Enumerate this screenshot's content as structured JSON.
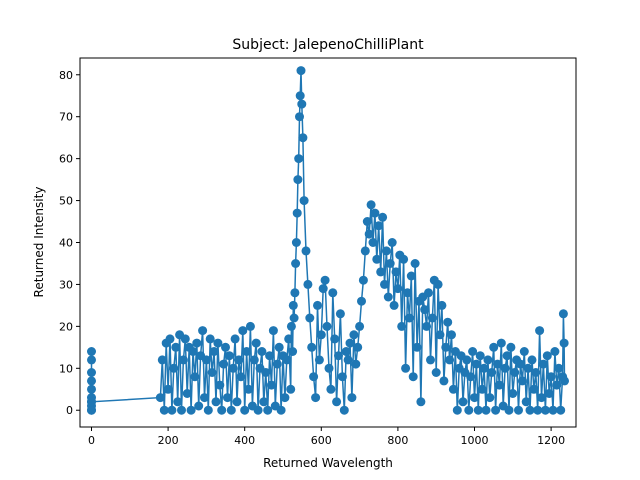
{
  "chart_data": {
    "type": "line",
    "title": "Subject: JalepenoChilliPlant",
    "xlabel": "Returned Wavelength",
    "ylabel": "Returned Intensity",
    "xlim": [
      -30,
      1265
    ],
    "ylim": [
      -4,
      84
    ],
    "xticks": [
      0,
      200,
      400,
      600,
      800,
      1000,
      1200
    ],
    "yticks": [
      0,
      10,
      20,
      30,
      40,
      50,
      60,
      70,
      80
    ],
    "grid": false,
    "marker": "circle",
    "color": "#1f77b4",
    "series": [
      {
        "x": [
          0,
          0,
          0,
          0,
          0,
          0,
          0,
          0,
          0,
          0,
          0,
          180,
          185,
          190,
          195,
          200,
          205,
          210,
          215,
          220,
          225,
          230,
          235,
          240,
          245,
          250,
          255,
          260,
          265,
          270,
          275,
          280,
          285,
          290,
          295,
          300,
          305,
          310,
          315,
          320,
          325,
          330,
          335,
          340,
          345,
          350,
          355,
          360,
          365,
          370,
          375,
          380,
          385,
          390,
          395,
          400,
          405,
          410,
          415,
          420,
          425,
          430,
          435,
          440,
          445,
          450,
          455,
          460,
          465,
          470,
          475,
          480,
          485,
          490,
          495,
          500,
          505,
          510,
          515,
          520,
          522,
          525,
          527,
          529,
          531,
          533,
          535,
          537,
          539,
          541,
          543,
          545,
          547,
          549,
          552,
          555,
          560,
          565,
          570,
          575,
          580,
          585,
          590,
          595,
          600,
          605,
          610,
          615,
          620,
          625,
          630,
          635,
          640,
          645,
          650,
          655,
          660,
          665,
          670,
          675,
          680,
          685,
          690,
          695,
          700,
          705,
          710,
          715,
          720,
          725,
          730,
          735,
          740,
          745,
          750,
          755,
          760,
          765,
          770,
          775,
          780,
          785,
          790,
          795,
          800,
          805,
          810,
          815,
          820,
          825,
          830,
          835,
          840,
          845,
          850,
          855,
          860,
          865,
          870,
          875,
          880,
          885,
          890,
          895,
          900,
          905,
          910,
          915,
          920,
          925,
          930,
          935,
          940,
          945,
          950,
          955,
          960,
          965,
          970,
          975,
          980,
          985,
          990,
          995,
          1000,
          1005,
          1010,
          1015,
          1020,
          1025,
          1030,
          1035,
          1040,
          1045,
          1050,
          1055,
          1060,
          1065,
          1070,
          1075,
          1080,
          1085,
          1090,
          1095,
          1100,
          1105,
          1110,
          1115,
          1120,
          1125,
          1130,
          1135,
          1140,
          1145,
          1150,
          1155,
          1160,
          1165,
          1170,
          1175,
          1180,
          1185,
          1190,
          1195,
          1200,
          1205,
          1210,
          1215,
          1220,
          1225,
          1230,
          1232,
          1234,
          1235
        ],
        "y": [
          0,
          14,
          2,
          12,
          5,
          9,
          1,
          7,
          3,
          0,
          2,
          3,
          12,
          0,
          16,
          5,
          17,
          0,
          10,
          15,
          2,
          18,
          0,
          12,
          17,
          4,
          15,
          0,
          14,
          8,
          16,
          1,
          13,
          19,
          3,
          12,
          0,
          17,
          9,
          14,
          2,
          16,
          6,
          0,
          11,
          15,
          3,
          13,
          0,
          10,
          17,
          2,
          12,
          8,
          19,
          0,
          14,
          5,
          20,
          1,
          12,
          16,
          0,
          10,
          14,
          2,
          9,
          0,
          13,
          6,
          19,
          1,
          11,
          15,
          0,
          13,
          3,
          12,
          17,
          5,
          20,
          14,
          25,
          22,
          28,
          35,
          40,
          47,
          55,
          60,
          70,
          75,
          81,
          73,
          65,
          50,
          38,
          30,
          22,
          15,
          8,
          3,
          25,
          12,
          18,
          29,
          31,
          20,
          10,
          5,
          28,
          17,
          2,
          13,
          23,
          8,
          0,
          14,
          12,
          16,
          3,
          18,
          11,
          15,
          20,
          26,
          31,
          38,
          45,
          42,
          49,
          40,
          47,
          36,
          44,
          33,
          46,
          30,
          38,
          27,
          35,
          40,
          25,
          33,
          29,
          37,
          20,
          36,
          10,
          28,
          22,
          32,
          8,
          35,
          15,
          26,
          2,
          27,
          24,
          20,
          28,
          12,
          22,
          31,
          9,
          30,
          18,
          25,
          7,
          15,
          21,
          12,
          18,
          5,
          14,
          0,
          10,
          13,
          2,
          9,
          12,
          0,
          8,
          14,
          3,
          11,
          0,
          13,
          5,
          10,
          0,
          12,
          3,
          9,
          15,
          0,
          11,
          6,
          16,
          1,
          10,
          13,
          0,
          15,
          4,
          9,
          12,
          0,
          11,
          7,
          14,
          2,
          10,
          0,
          12,
          5,
          9,
          0,
          19,
          3,
          11,
          0,
          13,
          4,
          8,
          0,
          14,
          6,
          10,
          0,
          8,
          23,
          16,
          7
        ]
      }
    ]
  }
}
